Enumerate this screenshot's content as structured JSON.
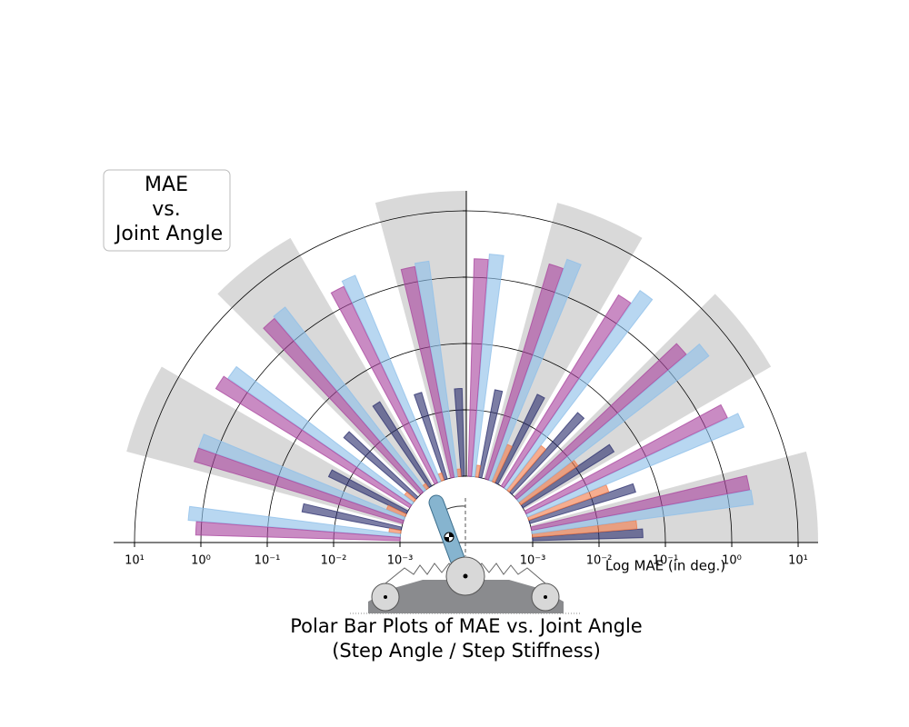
{
  "chart_data": {
    "type": "polar-bar",
    "title": [
      "Polar Bar Plots of MAE vs. Joint Angle",
      "(Step Angle / Step Stiffness)"
    ],
    "annotation": [
      "MAE",
      "vs.",
      "Joint Angle"
    ],
    "radial_label": "Log MAE (in deg.)",
    "log_scale": true,
    "grid": true,
    "shade_color": "#d9d9d9",
    "thetalim": [
      0,
      180
    ],
    "categories": [
      null,
      null,
      null,
      null,
      null,
      null,
      null,
      null,
      null,
      null,
      null,
      null
    ],
    "ylim": [
      0.001,
      20
    ],
    "yticks": [
      {
        "value": 0.001,
        "label": "10⁻³"
      },
      {
        "value": 0.01,
        "label": "10⁻²"
      },
      {
        "value": 0.1,
        "label": "10⁻¹"
      },
      {
        "value": 1,
        "label": "10⁰"
      },
      {
        "value": 10,
        "label": "10¹"
      }
    ],
    "series": [
      {
        "color": "#2b2f6e",
        "values": [
          0.046,
          0.046,
          0.041,
          0.038,
          0.03,
          0.022,
          0.021,
          0.023,
          0.031,
          0.027,
          0.02,
          0.033
        ]
      },
      {
        "color": "#f07b4a",
        "values": [
          0.038,
          0.019,
          0.011,
          0.007,
          0.004,
          0.0015,
          0.0013,
          0.0013,
          0.0012,
          0.0015,
          0.002,
          0.0015
        ]
      },
      {
        "color": "#8dbfe9",
        "values": [
          2.3,
          3.4,
          4.1,
          4.1,
          3.4,
          2.3,
          1.9,
          2.3,
          3.0,
          2.3,
          1.9,
          1.6
        ]
      },
      {
        "color": "#a8449e",
        "values": [
          2.2,
          2.3,
          2.3,
          2.4,
          2.4,
          1.9,
          1.7,
          1.9,
          2.8,
          2.7,
          1.9,
          1.2
        ]
      }
    ]
  }
}
